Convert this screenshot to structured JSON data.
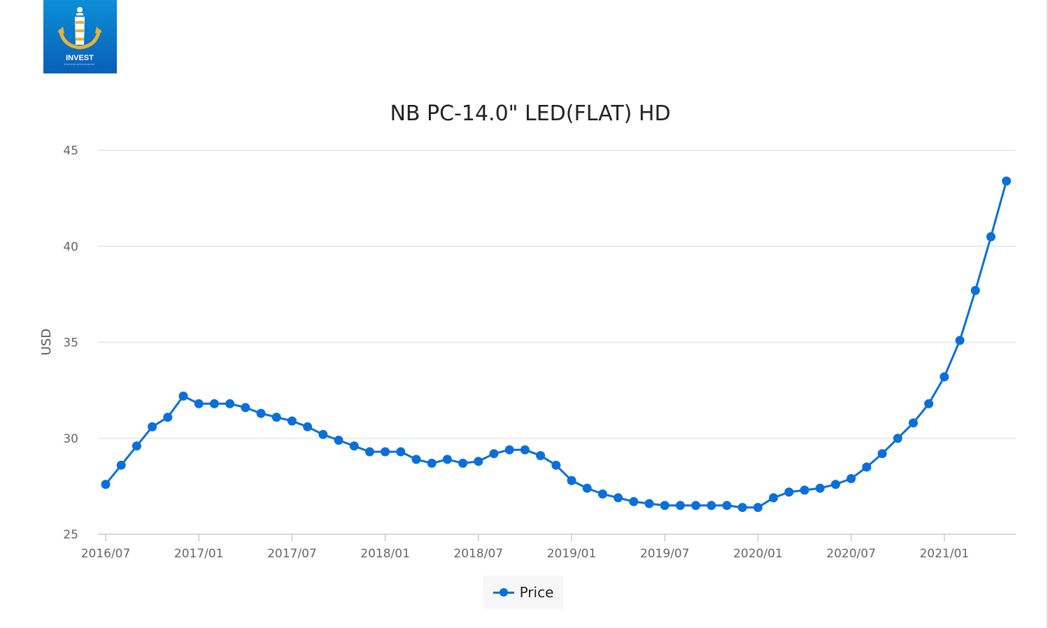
{
  "logo": {
    "text": "INVEST",
    "icon": "anchor-lighthouse-logo"
  },
  "colors": {
    "series": "#0a6fdb",
    "grid": "#e3e6ea",
    "axis": "#c8ccd2",
    "logo_bg_top": "#0b8fd6",
    "logo_bg_bottom": "#0a5fb8",
    "logo_gold": "#e6b33a"
  },
  "chart_data": {
    "type": "line",
    "title": "NB PC-14.0\" LED(FLAT) HD",
    "ylabel": "USD",
    "xlabel": "",
    "ylim": [
      25,
      45
    ],
    "yticks": [
      25,
      30,
      35,
      40,
      45
    ],
    "grid": true,
    "legend_position": "bottom-center",
    "x_tick_labels": [
      "2016/07",
      "2017/01",
      "2017/07",
      "2018/01",
      "2018/07",
      "2019/01",
      "2019/07",
      "2020/01",
      "2020/07",
      "2021/01"
    ],
    "x": [
      "2016/07",
      "2016/08",
      "2016/09",
      "2016/10",
      "2016/11",
      "2016/12",
      "2017/01",
      "2017/02",
      "2017/03",
      "2017/04",
      "2017/05",
      "2017/06",
      "2017/07",
      "2017/08",
      "2017/09",
      "2017/10",
      "2017/11",
      "2017/12",
      "2018/01",
      "2018/02",
      "2018/03",
      "2018/04",
      "2018/05",
      "2018/06",
      "2018/07",
      "2018/08",
      "2018/09",
      "2018/10",
      "2018/11",
      "2018/12",
      "2019/01",
      "2019/02",
      "2019/03",
      "2019/04",
      "2019/05",
      "2019/06",
      "2019/07",
      "2019/08",
      "2019/09",
      "2019/10",
      "2019/11",
      "2019/12",
      "2020/01",
      "2020/02",
      "2020/03",
      "2020/04",
      "2020/05",
      "2020/06",
      "2020/07",
      "2020/08",
      "2020/09",
      "2020/10",
      "2020/11",
      "2020/12",
      "2021/01",
      "2021/02",
      "2021/03",
      "2021/04",
      "2021/05"
    ],
    "series": [
      {
        "name": "Price",
        "values": [
          27.6,
          28.6,
          29.6,
          30.6,
          31.1,
          32.2,
          31.8,
          31.8,
          31.8,
          31.6,
          31.3,
          31.1,
          30.9,
          30.6,
          30.2,
          29.9,
          29.6,
          29.3,
          29.3,
          29.3,
          28.9,
          28.7,
          28.9,
          28.7,
          28.8,
          29.2,
          29.4,
          29.4,
          29.1,
          28.6,
          27.8,
          27.4,
          27.1,
          26.9,
          26.7,
          26.6,
          26.5,
          26.5,
          26.5,
          26.5,
          26.5,
          26.4,
          26.4,
          26.9,
          27.2,
          27.3,
          27.4,
          27.6,
          27.9,
          28.5,
          29.2,
          30.0,
          30.8,
          31.8,
          33.2,
          35.1,
          37.7,
          40.5,
          43.4
        ]
      }
    ]
  }
}
